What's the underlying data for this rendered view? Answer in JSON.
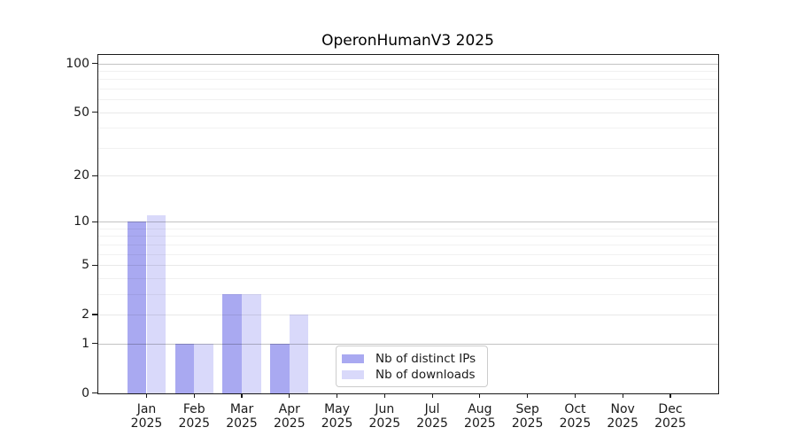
{
  "chart_data": {
    "type": "bar",
    "title": "OperonHumanV3 2025",
    "xlabel": "",
    "ylabel": "",
    "categories": [
      "Jan",
      "Feb",
      "Mar",
      "Apr",
      "May",
      "Jun",
      "Jul",
      "Aug",
      "Sep",
      "Oct",
      "Nov",
      "Dec"
    ],
    "year_label": "2025",
    "series": [
      {
        "name": "Nb of distinct IPs",
        "color": "#a9a9f1",
        "values": [
          10,
          1,
          3,
          1,
          0,
          0,
          0,
          0,
          0,
          0,
          0,
          0
        ]
      },
      {
        "name": "Nb of downloads",
        "color": "#d9d9fa",
        "values": [
          11,
          1,
          3,
          2,
          0,
          0,
          0,
          0,
          0,
          0,
          0,
          0
        ]
      }
    ],
    "y_axis": {
      "scale": "log(1+y)",
      "ticks": [
        {
          "label": "0",
          "value": 0
        },
        {
          "label": "1",
          "value": 1
        },
        {
          "label": "2",
          "value": 2
        },
        {
          "label": "5",
          "value": 5
        },
        {
          "label": "10",
          "value": 10
        },
        {
          "label": "20",
          "value": 20
        },
        {
          "label": "50",
          "value": 50
        },
        {
          "label": "100",
          "value": 100
        }
      ],
      "minor_gridlines": [
        3,
        4,
        6,
        7,
        8,
        9,
        30,
        40,
        60,
        70,
        80,
        90
      ],
      "emphasized_gridlines": [
        1,
        10,
        100
      ],
      "ylim": [
        0,
        113
      ],
      "grid": "on"
    },
    "legend": {
      "position": "lower-center-inside",
      "labels": [
        "Nb of distinct IPs",
        "Nb of downloads"
      ]
    },
    "colors": {
      "background": "#ffffff",
      "spine": "#1a1a1a",
      "distinct_ips_bar": "#a9a9f1",
      "downloads_bar": "#d9d9fa"
    }
  }
}
